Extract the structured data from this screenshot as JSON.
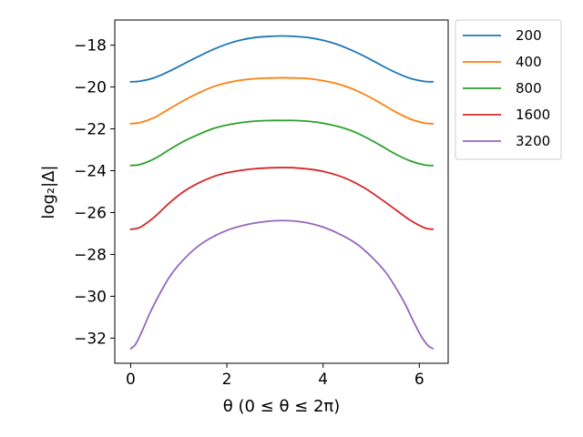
{
  "chart_data": {
    "type": "line",
    "xlabel": "θ  (0 ≤ θ ≤ 2π)",
    "ylabel": "log₂|Δ|",
    "xlim": [
      -0.33,
      6.6
    ],
    "ylim": [
      -33.2,
      -16.8
    ],
    "xticks": [
      0,
      2,
      4,
      6
    ],
    "yticks": [
      -18,
      -20,
      -22,
      -24,
      -26,
      -28,
      -30,
      -32
    ],
    "grid": false,
    "legend_position": "outside-right-top",
    "series": [
      {
        "name": "200",
        "color": "#1f77b4",
        "x": [
          0,
          0.2,
          0.5,
          0.8,
          1.1,
          1.4,
          1.7,
          2.0,
          2.3,
          2.6,
          2.9,
          3.1416,
          3.4,
          3.7,
          4.0,
          4.3,
          4.6,
          4.9,
          5.2,
          5.5,
          5.8,
          6.1,
          6.283
        ],
        "y": [
          -19.75,
          -19.72,
          -19.55,
          -19.25,
          -18.9,
          -18.55,
          -18.22,
          -17.95,
          -17.75,
          -17.63,
          -17.58,
          -17.56,
          -17.58,
          -17.64,
          -17.77,
          -17.97,
          -18.25,
          -18.58,
          -18.95,
          -19.3,
          -19.58,
          -19.73,
          -19.75
        ]
      },
      {
        "name": "400",
        "color": "#ff7f0e",
        "x": [
          0,
          0.2,
          0.5,
          0.8,
          1.1,
          1.4,
          1.7,
          2.0,
          2.3,
          2.6,
          2.9,
          3.1416,
          3.4,
          3.7,
          4.0,
          4.3,
          4.6,
          4.9,
          5.2,
          5.5,
          5.8,
          6.1,
          6.283
        ],
        "y": [
          -21.75,
          -21.7,
          -21.45,
          -21.05,
          -20.65,
          -20.3,
          -20.0,
          -19.8,
          -19.67,
          -19.6,
          -19.57,
          -19.56,
          -19.57,
          -19.6,
          -19.7,
          -19.85,
          -20.08,
          -20.4,
          -20.78,
          -21.18,
          -21.52,
          -21.72,
          -21.75
        ]
      },
      {
        "name": "800",
        "color": "#2ca02c",
        "x": [
          0,
          0.2,
          0.5,
          0.8,
          1.1,
          1.4,
          1.7,
          2.0,
          2.3,
          2.6,
          2.9,
          3.1416,
          3.4,
          3.7,
          4.0,
          4.3,
          4.6,
          4.9,
          5.2,
          5.5,
          5.8,
          6.1,
          6.283
        ],
        "y": [
          -23.75,
          -23.7,
          -23.42,
          -23.0,
          -22.6,
          -22.28,
          -22.0,
          -21.82,
          -21.7,
          -21.63,
          -21.6,
          -21.6,
          -21.6,
          -21.64,
          -21.73,
          -21.88,
          -22.1,
          -22.42,
          -22.8,
          -23.2,
          -23.52,
          -23.72,
          -23.75
        ]
      },
      {
        "name": "1600",
        "color": "#d62728",
        "x": [
          0,
          0.2,
          0.5,
          0.8,
          1.1,
          1.4,
          1.7,
          2.0,
          2.3,
          2.6,
          2.9,
          3.1416,
          3.4,
          3.7,
          4.0,
          4.3,
          4.6,
          4.9,
          5.2,
          5.5,
          5.8,
          6.1,
          6.283
        ],
        "y": [
          -26.8,
          -26.7,
          -26.2,
          -25.55,
          -25.0,
          -24.6,
          -24.3,
          -24.1,
          -23.98,
          -23.9,
          -23.86,
          -23.85,
          -23.86,
          -23.92,
          -24.03,
          -24.22,
          -24.5,
          -24.88,
          -25.35,
          -25.85,
          -26.35,
          -26.72,
          -26.8
        ]
      },
      {
        "name": "3200",
        "color": "#9467bd",
        "x": [
          0,
          0.1,
          0.25,
          0.4,
          0.6,
          0.8,
          1.0,
          1.3,
          1.6,
          2.0,
          2.4,
          2.8,
          3.1416,
          3.5,
          3.9,
          4.3,
          4.7,
          5.0,
          5.3,
          5.5,
          5.7,
          5.9,
          6.05,
          6.18,
          6.283
        ],
        "y": [
          -32.5,
          -32.3,
          -31.6,
          -30.8,
          -29.9,
          -29.1,
          -28.5,
          -27.8,
          -27.3,
          -26.85,
          -26.58,
          -26.43,
          -26.38,
          -26.43,
          -26.62,
          -26.98,
          -27.5,
          -28.1,
          -28.85,
          -29.55,
          -30.35,
          -31.3,
          -31.95,
          -32.35,
          -32.5
        ]
      }
    ]
  }
}
